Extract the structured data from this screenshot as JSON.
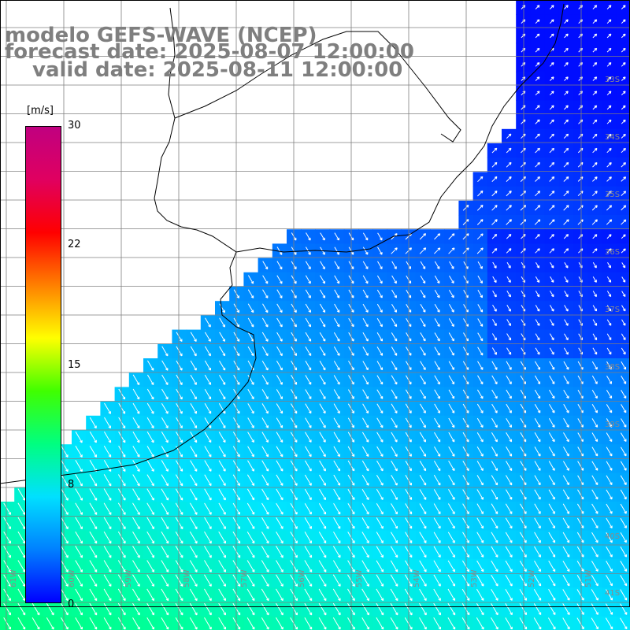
{
  "title": {
    "line1": "modelo GEFS-WAVE (NCEP)",
    "line2": "forecast date: 2025-08-07 12:00:00",
    "line3": "valid date: 2025-08-11 12:00:00"
  },
  "colorbar": {
    "unit": "[m/s]",
    "ticks": [
      "30",
      "22",
      "15",
      "8",
      "0"
    ],
    "tick_values": [
      30,
      22,
      15,
      8,
      0
    ],
    "range": [
      0,
      30
    ],
    "colors": [
      "#0000ff",
      "#0080ff",
      "#00e0ff",
      "#00ff80",
      "#40ff00",
      "#ffff00",
      "#ff8000",
      "#ff0000",
      "#e00060",
      "#c00080"
    ]
  },
  "map": {
    "variable": "wind speed and direction",
    "lat_labels": [
      "33S",
      "34S",
      "35S",
      "36S",
      "37S",
      "38S",
      "39S",
      "40S",
      "41S"
    ],
    "lon_labels": [
      "61W",
      "60W",
      "59W",
      "58W",
      "57W",
      "56W",
      "55W",
      "54W",
      "53W",
      "52W",
      "51W"
    ],
    "land_color": "#ffffff",
    "grid_color": "#7f7f7f",
    "coast_color": "#000000"
  }
}
